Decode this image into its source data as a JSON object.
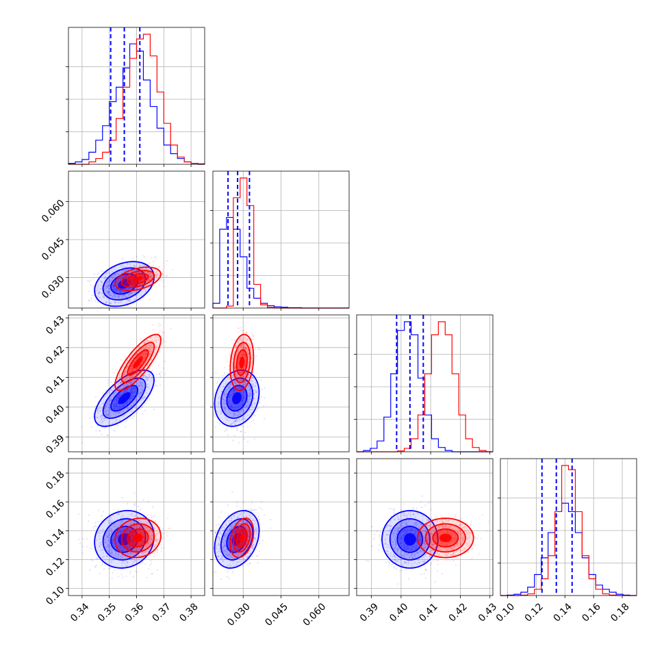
{
  "chart_data": {
    "type": "corner",
    "colors": {
      "series_a": "#0000ff",
      "series_b": "#ff0000"
    },
    "grid": true,
    "parameters": [
      {
        "range": [
          0.335,
          0.385
        ],
        "ticks": [
          0.34,
          0.35,
          0.36,
          0.37,
          0.38
        ],
        "tick_labels": [
          "0.34",
          "0.35",
          "0.36",
          "0.37",
          "0.38"
        ]
      },
      {
        "range": [
          0.018,
          0.072
        ],
        "ticks": [
          0.03,
          0.045,
          0.06
        ],
        "tick_labels": [
          "0.030",
          "0.045",
          "0.060"
        ]
      },
      {
        "range": [
          0.385,
          0.431
        ],
        "ticks": [
          0.39,
          0.4,
          0.41,
          0.42,
          0.43
        ],
        "tick_labels": [
          "0.39",
          "0.40",
          "0.41",
          "0.42",
          "0.43"
        ]
      },
      {
        "range": [
          0.095,
          0.19
        ],
        "ticks": [
          0.1,
          0.12,
          0.14,
          0.16,
          0.18
        ],
        "tick_labels": [
          "0.10",
          "0.12",
          "0.14",
          "0.16",
          "0.18"
        ]
      }
    ],
    "series": [
      {
        "color": "#0000ff",
        "means": [
          0.3555,
          0.0275,
          0.403,
          0.134
        ],
        "stds": [
          0.0052,
          0.0042,
          0.0045,
          0.0095
        ],
        "correlations": {
          "0-1": 0.3,
          "0-2": 0.65,
          "0-3": 0.1,
          "1-2": 0.2,
          "1-3": 0.3,
          "2-3": 0.0
        },
        "quantiles": [
          [
            0.3505,
            0.3555,
            0.3612
          ],
          [
            0.024,
            0.0278,
            0.0325
          ],
          [
            0.3985,
            0.403,
            0.4075
          ],
          [
            0.124,
            0.134,
            0.145
          ]
        ],
        "histograms": [
          [
            2,
            5,
            10,
            25,
            50,
            80,
            130,
            160,
            200,
            250,
            235,
            175,
            120,
            75,
            40,
            22,
            12,
            5,
            2,
            1
          ],
          [
            12,
            200,
            230,
            200,
            130,
            50,
            25,
            12,
            6,
            3,
            2,
            1,
            1,
            0,
            0,
            0,
            0,
            0,
            0,
            0
          ],
          [
            0,
            3,
            8,
            25,
            80,
            180,
            280,
            300,
            270,
            170,
            85,
            30,
            10,
            3,
            0,
            0,
            0,
            0,
            0,
            0
          ],
          [
            0,
            1,
            3,
            8,
            20,
            50,
            90,
            150,
            200,
            220,
            200,
            150,
            90,
            50,
            25,
            15,
            8,
            3,
            1,
            0
          ]
        ]
      },
      {
        "color": "#ff0000",
        "means": [
          0.3605,
          0.0295,
          0.415,
          0.135
        ],
        "stds": [
          0.004,
          0.0022,
          0.0045,
          0.0065
        ],
        "correlations": {
          "0-1": 0.4,
          "0-2": 0.8,
          "0-3": 0.1,
          "1-2": 0.2,
          "1-3": 0.3,
          "2-3": 0.0
        },
        "histograms": [
          [
            0,
            0,
            0,
            5,
            12,
            25,
            50,
            95,
            160,
            220,
            260,
            270,
            225,
            150,
            85,
            40,
            15,
            5,
            2,
            0
          ],
          [
            0,
            0,
            5,
            280,
            330,
            260,
            60,
            8,
            2,
            0,
            0,
            0,
            0,
            0,
            0,
            0,
            0,
            0,
            0,
            0
          ],
          [
            0,
            0,
            0,
            0,
            0,
            0,
            2,
            8,
            30,
            85,
            180,
            270,
            300,
            270,
            180,
            85,
            30,
            10,
            3,
            0
          ],
          [
            0,
            0,
            0,
            1,
            4,
            15,
            40,
            95,
            200,
            310,
            300,
            200,
            95,
            40,
            15,
            4,
            1,
            0,
            0,
            0
          ]
        ]
      }
    ]
  }
}
